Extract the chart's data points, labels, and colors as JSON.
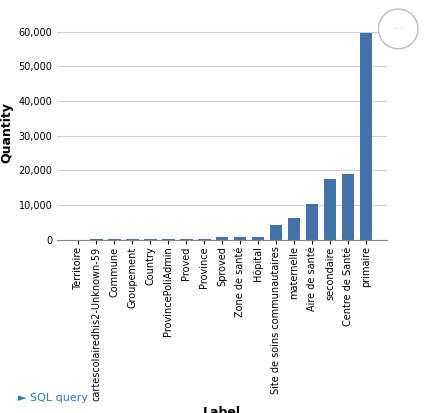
{
  "categories": [
    "Territoire",
    "cartescolairedhis2-Unknown-59",
    "Commune",
    "Groupement",
    "Country",
    "ProvincePoliAdmin",
    "Proved",
    "Province",
    "Sproved",
    "Zone de santé",
    "Hôpital",
    "Site de soins communautaires",
    "maternelle",
    "Aire de santé",
    "secondaire",
    "Centre de Santé",
    "primaire"
  ],
  "values": [
    10,
    20,
    30,
    40,
    50,
    60,
    70,
    100,
    700,
    600,
    800,
    4200,
    6200,
    10200,
    17500,
    19000,
    59500
  ],
  "bar_color": "#4472a8",
  "xlabel": "Label",
  "ylabel": "Quantity",
  "ylim": [
    0,
    62000
  ],
  "yticks": [
    0,
    10000,
    20000,
    30000,
    40000,
    50000,
    60000
  ],
  "background_color": "#ffffff",
  "grid_color": "#d0d0d0",
  "sql_query_text": "► SQL query",
  "sql_query_color": "#2e7db5",
  "dots_color": "#bbbbbb",
  "tick_fontsize": 7,
  "label_fontsize": 9
}
